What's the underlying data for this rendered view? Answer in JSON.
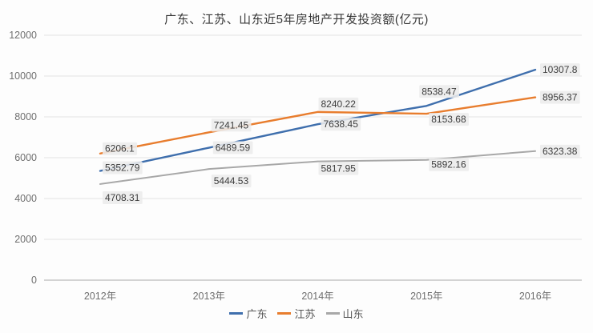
{
  "chart_data": {
    "type": "line",
    "title": "广东、江苏、山东近5年房地产开发投资额(亿元)",
    "categories": [
      "2012年",
      "2013年",
      "2014年",
      "2015年",
      "2016年"
    ],
    "series": [
      {
        "name": "广东",
        "color": "#3f6fad",
        "values": [
          5352.79,
          6489.59,
          7638.45,
          8538.47,
          10307.8
        ]
      },
      {
        "name": "江苏",
        "color": "#e87d2e",
        "values": [
          6206.1,
          7241.45,
          8240.22,
          8153.68,
          8956.37
        ]
      },
      {
        "name": "山东",
        "color": "#a8a8a8",
        "values": [
          4708.31,
          5444.53,
          5817.95,
          5892.16,
          6323.38
        ]
      }
    ],
    "ylim": [
      0,
      12000
    ],
    "ytick_step": 2000,
    "grid": true,
    "legend_position": "bottom",
    "colors": {
      "gridline": "#e4e4e4",
      "baseline": "#a9a9a9",
      "label_chip": "#ececec",
      "tick_text": "#6f6f6f"
    }
  }
}
